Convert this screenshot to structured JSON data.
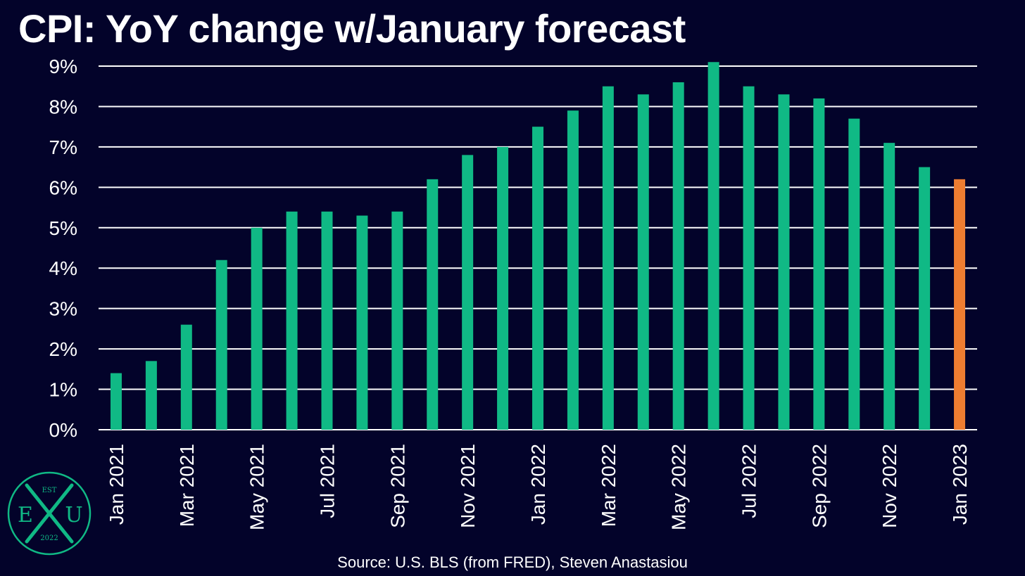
{
  "chart_data": {
    "type": "bar",
    "title": "CPI: YoY change w/January forecast",
    "xlabel": "",
    "ylabel": "",
    "ylim": [
      0,
      9
    ],
    "y_ticks": [
      "0%",
      "1%",
      "2%",
      "3%",
      "4%",
      "5%",
      "6%",
      "7%",
      "8%",
      "9%"
    ],
    "grid": true,
    "categories": [
      "Jan 2021",
      "Feb 2021",
      "Mar 2021",
      "Apr 2021",
      "May 2021",
      "Jun 2021",
      "Jul 2021",
      "Aug 2021",
      "Sep 2021",
      "Oct 2021",
      "Nov 2021",
      "Dec 2021",
      "Jan 2022",
      "Feb 2022",
      "Mar 2022",
      "Apr 2022",
      "May 2022",
      "Jun 2022",
      "Jul 2022",
      "Aug 2022",
      "Sep 2022",
      "Oct 2022",
      "Nov 2022",
      "Dec 2022",
      "Jan 2023"
    ],
    "x_tick_labels": [
      "Jan 2021",
      "",
      "Mar 2021",
      "",
      "May 2021",
      "",
      "Jul 2021",
      "",
      "Sep 2021",
      "",
      "Nov 2021",
      "",
      "Jan 2022",
      "",
      "Mar 2022",
      "",
      "May 2022",
      "",
      "Jul 2022",
      "",
      "Sep 2022",
      "",
      "Nov 2022",
      "",
      "Jan 2023"
    ],
    "values": [
      1.4,
      1.7,
      2.6,
      4.2,
      5.0,
      5.4,
      5.4,
      5.3,
      5.4,
      6.2,
      6.8,
      7.0,
      7.5,
      7.9,
      8.5,
      8.3,
      8.6,
      9.1,
      8.5,
      8.3,
      8.2,
      7.7,
      7.1,
      6.5,
      6.2
    ],
    "forecast_index": 24,
    "colors": {
      "actual": "#10b985",
      "forecast": "#ee7d31",
      "grid": "#ffffff",
      "background": "#03032a"
    }
  },
  "source": "Source: U.S. BLS (from FRED), Steven Anastasiou",
  "logo": {
    "top": "EST",
    "left": "E",
    "right": "U",
    "bottom": "2022",
    "color": "#10b985"
  }
}
